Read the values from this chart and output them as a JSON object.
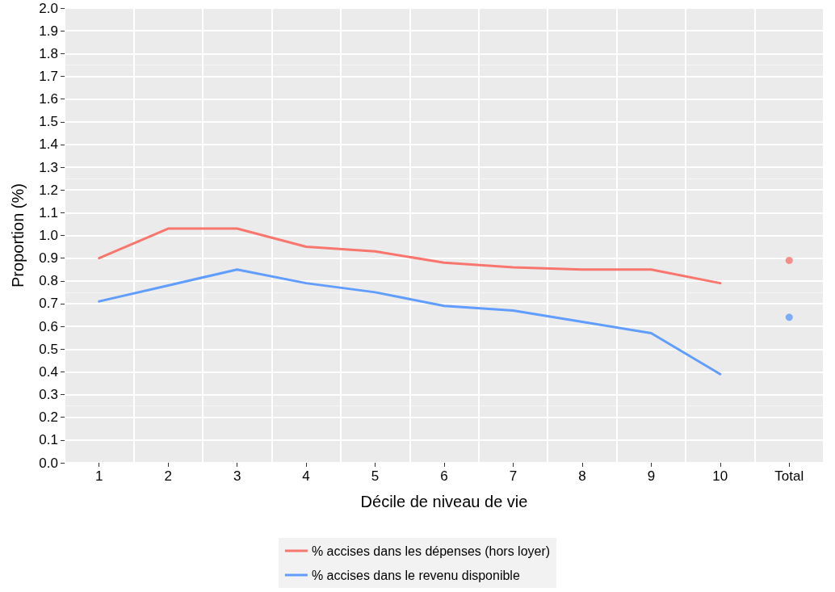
{
  "chart_data": {
    "type": "line",
    "xlabel": "Décile de niveau de vie",
    "ylabel": "Proportion (%)",
    "categories": [
      "1",
      "2",
      "3",
      "4",
      "5",
      "6",
      "7",
      "8",
      "9",
      "10",
      "Total"
    ],
    "series": [
      {
        "name": "% accises dans les dépenses (hors loyer)",
        "color": "#f8766d",
        "values": [
          0.9,
          1.03,
          1.03,
          0.95,
          0.93,
          0.88,
          0.86,
          0.85,
          0.85,
          0.79,
          null
        ]
      },
      {
        "name": "% accises dans le revenu disponible",
        "color": "#619cff",
        "values": [
          0.71,
          0.78,
          0.85,
          0.79,
          0.75,
          0.69,
          0.67,
          0.62,
          0.57,
          0.39,
          null
        ]
      },
      {
        "type": "scatter",
        "marker": "circle",
        "color": "#f8766d",
        "x": [
          "Total"
        ],
        "values": [
          0.89
        ]
      },
      {
        "type": "scatter",
        "marker": "circle",
        "color": "#619cff",
        "x": [
          "Total"
        ],
        "values": [
          0.64
        ]
      }
    ],
    "ylim": [
      0,
      2
    ],
    "yticks": [
      {
        "value": 0,
        "label": "0.0"
      },
      0.1,
      0.2,
      0.3,
      0.4,
      0.5,
      0.6,
      0.7,
      0.8,
      0.9,
      {
        "value": 1,
        "label": "1.0"
      },
      1.1,
      1.2,
      1.3,
      1.4,
      1.5,
      1.6,
      1.7,
      1.8,
      1.9,
      {
        "value": 2,
        "label": "2.0"
      }
    ],
    "grid": true,
    "legend": "bottom",
    "marker": "none",
    "line_style": "solid"
  }
}
